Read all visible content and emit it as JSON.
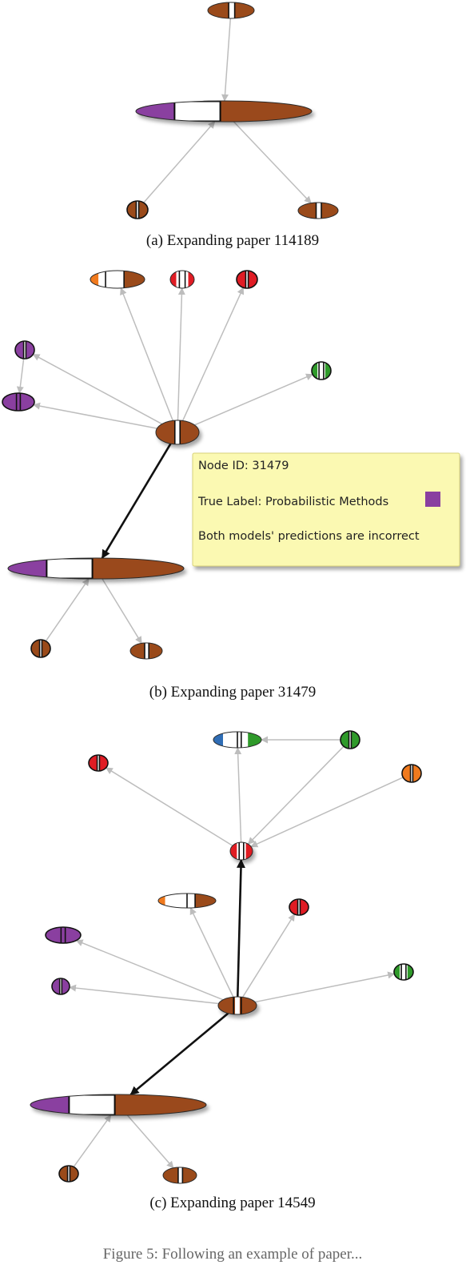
{
  "panels": [
    {
      "caption": "(a)  Expanding paper 114189"
    },
    {
      "caption": "(b)  Expanding paper 31479"
    },
    {
      "caption": "(c)  Expanding paper 14549"
    }
  ],
  "tooltip": {
    "node_id_line": "Node ID: 31479",
    "true_label_line": "True Label: Probabilistic Methods",
    "prediction_line": "Both models' predictions are incorrect"
  },
  "figure_caption": "Figure 5:  Following an example of paper...",
  "colors": {
    "brown": "#9a4a1a",
    "purple": "#8a3fa0",
    "red": "#e01c24",
    "green": "#2f9a2a",
    "orange": "#f07a1e",
    "blue": "#2f6db5",
    "edge": "#bdbdbd",
    "edge_expanded": "#111111",
    "tooltip_bg": "#fbf9b2",
    "tooltip_border": "#d9d37a"
  }
}
